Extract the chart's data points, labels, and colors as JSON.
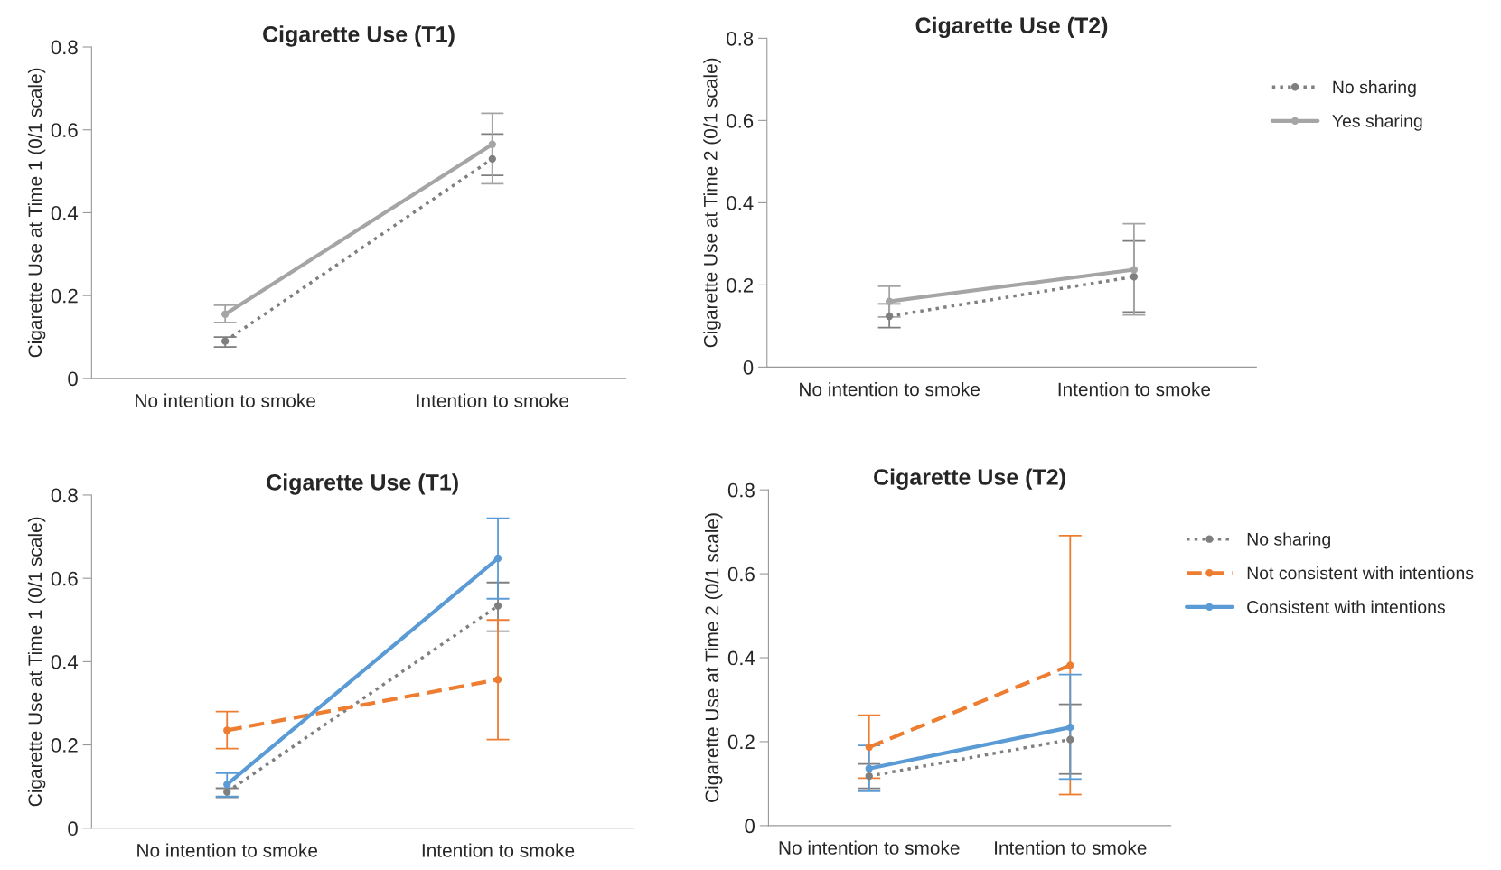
{
  "chart_data": [
    {
      "type": "line",
      "title": "Cigarette Use (T1)",
      "ylabel": "Cigarette Use at Time 1 (0/1 scale)",
      "categories": [
        "No intention to smoke",
        "Intention to smoke"
      ],
      "ylim": [
        0,
        0.8
      ],
      "yticks": [
        0,
        0.2,
        0.4,
        0.6,
        0.8
      ],
      "marker": "circle",
      "grid": false,
      "legend": false,
      "series": [
        {
          "color": "#7f7f7f",
          "line_style": "dotted",
          "values": [
            0.09,
            0.53
          ],
          "errors": [
            [
              0.076,
              0.1
            ],
            [
              0.49,
              0.59
            ]
          ]
        },
        {
          "color": "#a5a5a5",
          "line_style": "solid",
          "values": [
            0.155,
            0.565
          ],
          "errors": [
            [
              0.135,
              0.177
            ],
            [
              0.47,
              0.64
            ]
          ]
        }
      ]
    },
    {
      "type": "line",
      "title": "Cigarette Use (T2)",
      "ylabel": "Cigarette Use at Time 2 (0/1 scale)",
      "categories": [
        "No intention to smoke",
        "Intention to smoke"
      ],
      "ylim": [
        0,
        0.8
      ],
      "yticks": [
        0,
        0.2,
        0.4,
        0.6,
        0.8
      ],
      "marker": "circle",
      "grid": false,
      "legend": "right",
      "series": [
        {
          "name": "No sharing",
          "color": "#7f7f7f",
          "line_style": "dotted",
          "values": [
            0.124,
            0.22
          ],
          "errors": [
            [
              0.096,
              0.154
            ],
            [
              0.134,
              0.307
            ]
          ]
        },
        {
          "name": "Yes sharing",
          "color": "#a5a5a5",
          "line_style": "solid",
          "values": [
            0.16,
            0.237
          ],
          "errors": [
            [
              0.122,
              0.197
            ],
            [
              0.127,
              0.349
            ]
          ]
        }
      ]
    },
    {
      "type": "line",
      "title": "Cigarette Use (T1)",
      "ylabel": "Cigarette Use at Time 1 (0/1 scale)",
      "categories": [
        "No intention to smoke",
        "Intention to smoke"
      ],
      "ylim": [
        0,
        0.8
      ],
      "yticks": [
        0,
        0.2,
        0.4,
        0.6,
        0.8
      ],
      "marker": "circle",
      "grid": false,
      "legend": false,
      "series": [
        {
          "color": "#7f7f7f",
          "line_style": "dotted",
          "values": [
            0.087,
            0.534
          ],
          "errors": [
            [
              0.074,
              0.096
            ],
            [
              0.473,
              0.59
            ]
          ]
        },
        {
          "color": "#ed7d31",
          "line_style": "dashed",
          "values": [
            0.235,
            0.357
          ],
          "errors": [
            [
              0.191,
              0.28
            ],
            [
              0.213,
              0.5
            ]
          ]
        },
        {
          "color": "#5b9bd5",
          "line_style": "solid",
          "values": [
            0.105,
            0.648
          ],
          "errors": [
            [
              0.076,
              0.132
            ],
            [
              0.551,
              0.744
            ]
          ]
        }
      ]
    },
    {
      "type": "line",
      "title": "Cigarette Use (T2)",
      "ylabel": "Cigarette Use at Time 2 (0/1 scale)",
      "categories": [
        "No intention to smoke",
        "Intention to smoke"
      ],
      "ylim": [
        0,
        0.8
      ],
      "yticks": [
        0,
        0.2,
        0.4,
        0.6,
        0.8
      ],
      "marker": "circle",
      "grid": false,
      "legend": "right",
      "series": [
        {
          "name": "No sharing",
          "color": "#7f7f7f",
          "line_style": "dotted",
          "values": [
            0.118,
            0.205
          ],
          "errors": [
            [
              0.089,
              0.147
            ],
            [
              0.123,
              0.289
            ]
          ]
        },
        {
          "name": "Not consistent with intentions",
          "color": "#ed7d31",
          "line_style": "dashed",
          "values": [
            0.187,
            0.382
          ],
          "errors": [
            [
              0.113,
              0.263
            ],
            [
              0.074,
              0.691
            ]
          ]
        },
        {
          "name": "Consistent with intentions",
          "color": "#5b9bd5",
          "line_style": "solid",
          "values": [
            0.136,
            0.234
          ],
          "errors": [
            [
              0.082,
              0.191
            ],
            [
              0.111,
              0.36
            ]
          ]
        }
      ]
    }
  ]
}
